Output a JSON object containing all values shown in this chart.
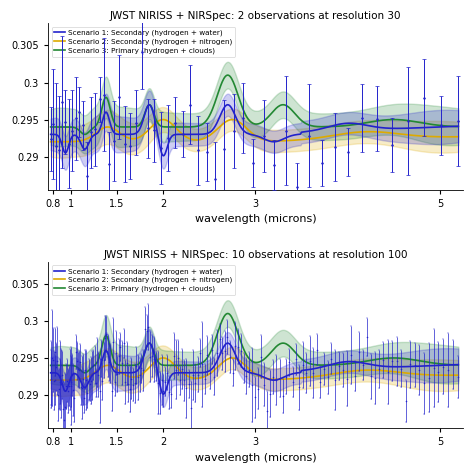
{
  "title1": "JWST NIRISS + NIRSpec: 2 observations at resolution 30",
  "title2": "JWST NIRISS + NIRSpec: 10 observations at resolution 100",
  "xlabel": "wavelength (microns)",
  "xlim": [
    0.75,
    5.25
  ],
  "ylim": [
    0.2855,
    0.308
  ],
  "yticks": [
    0.29,
    0.295,
    0.3,
    0.305
  ],
  "xticks": [
    0.8,
    1.0,
    1.5,
    2.0,
    3.0,
    5.0
  ],
  "xtick_labels": [
    "0.8",
    "1",
    "1.5",
    "2",
    "3",
    "5"
  ],
  "legend_labels": [
    "Scenario 1: Secondary (hydrogen + water)",
    "Scenario 2: Secondary (hydrogen + nitrogen)",
    "Scenario 3: Primary (hydrogen + clouds)"
  ],
  "colors": {
    "s1": "#2222cc",
    "s2": "#ddaa00",
    "s3": "#228833"
  },
  "alpha_band": 0.22,
  "background": "#ffffff"
}
